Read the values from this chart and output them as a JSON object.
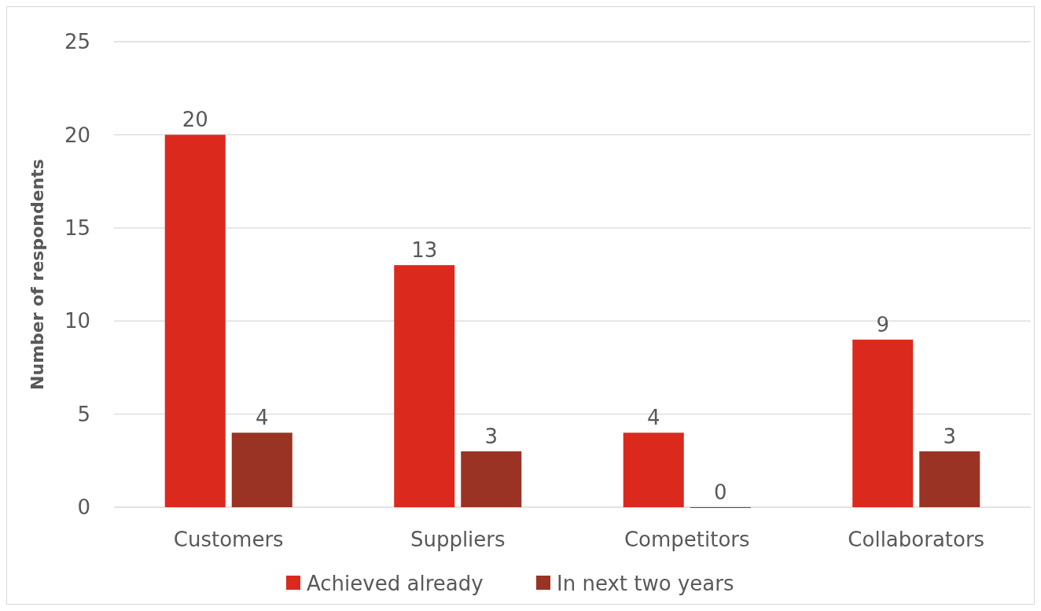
{
  "chart_data": {
    "type": "bar",
    "ylabel": "Number of respondents",
    "categories": [
      "Customers",
      "Suppliers",
      "Competitors",
      "Collaborators"
    ],
    "series": [
      {
        "name": "Achieved already",
        "color": "#dc291e",
        "values": [
          20,
          13,
          4,
          9
        ]
      },
      {
        "name": "In next two years",
        "color": "#9a3324",
        "values": [
          4,
          3,
          0,
          3
        ]
      }
    ],
    "ylim": [
      0,
      25
    ],
    "yticks": [
      0,
      5,
      10,
      15,
      20,
      25
    ],
    "grid": "y",
    "legend": "bottom",
    "data_labels": true
  }
}
